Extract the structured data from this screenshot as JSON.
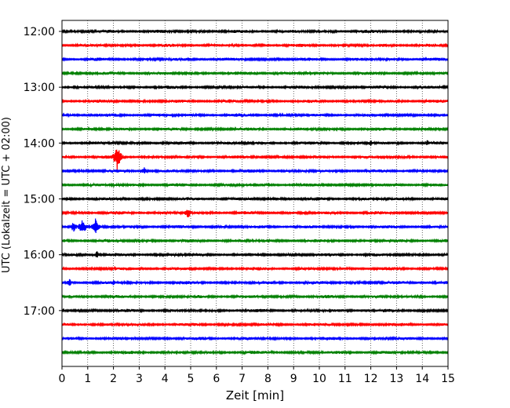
{
  "chart_data": {
    "type": "line",
    "title": "",
    "xlabel": "Zeit  [min]",
    "ylabel": "UTC (Lokalzeit = UTC + 02:00)",
    "xlim": [
      0,
      15
    ],
    "x_ticks": [
      0,
      1,
      2,
      3,
      4,
      5,
      6,
      7,
      8,
      9,
      10,
      11,
      12,
      13,
      14,
      15
    ],
    "x_tick_labels": [
      "0",
      "1",
      "2",
      "3",
      "4",
      "5",
      "6",
      "7",
      "8",
      "9",
      "10",
      "11",
      "12",
      "13",
      "14",
      "15"
    ],
    "y_tick_labels": [
      "12:00",
      "13:00",
      "14:00",
      "15:00",
      "16:00",
      "17:00"
    ],
    "y_tick_positions_hours": [
      12,
      13,
      14,
      15,
      16,
      17
    ],
    "ylim_hours": [
      12,
      18
    ],
    "y_inverted": true,
    "grid": "vertical dotted lines at each minute",
    "trace_interval_minutes": 15,
    "trace_colors": [
      "#000000",
      "#ff0000",
      "#0000ff",
      "#008000"
    ],
    "traces": [
      {
        "start": "12:00",
        "color": "#000000"
      },
      {
        "start": "12:15",
        "color": "#ff0000"
      },
      {
        "start": "12:30",
        "color": "#0000ff"
      },
      {
        "start": "12:45",
        "color": "#008000",
        "events": [
          {
            "minute": 7.5,
            "amplitude": 3
          }
        ]
      },
      {
        "start": "13:00",
        "color": "#000000"
      },
      {
        "start": "13:15",
        "color": "#ff0000",
        "events": [
          {
            "minute": 6.5,
            "amplitude": 3
          }
        ]
      },
      {
        "start": "13:30",
        "color": "#0000ff"
      },
      {
        "start": "13:45",
        "color": "#008000"
      },
      {
        "start": "14:00",
        "color": "#000000",
        "events": [
          {
            "minute": 12.0,
            "amplitude": 4
          },
          {
            "minute": 14.2,
            "amplitude": 4
          }
        ]
      },
      {
        "start": "14:15",
        "color": "#ff0000",
        "events": [
          {
            "minute": 2.15,
            "amplitude": 18
          }
        ]
      },
      {
        "start": "14:30",
        "color": "#0000ff",
        "events": [
          {
            "minute": 3.2,
            "amplitude": 5
          }
        ]
      },
      {
        "start": "14:45",
        "color": "#008000"
      },
      {
        "start": "15:00",
        "color": "#000000"
      },
      {
        "start": "15:15",
        "color": "#ff0000",
        "events": [
          {
            "minute": 4.9,
            "amplitude": 7
          }
        ]
      },
      {
        "start": "15:30",
        "color": "#0000ff",
        "events": [
          {
            "minute": 0.45,
            "amplitude": 7
          },
          {
            "minute": 0.8,
            "amplitude": 12
          },
          {
            "minute": 1.3,
            "amplitude": 11
          }
        ]
      },
      {
        "start": "15:45",
        "color": "#008000"
      },
      {
        "start": "16:00",
        "color": "#000000",
        "events": [
          {
            "minute": 1.35,
            "amplitude": 5
          }
        ]
      },
      {
        "start": "16:15",
        "color": "#ff0000"
      },
      {
        "start": "16:30",
        "color": "#0000ff",
        "events": [
          {
            "minute": 0.3,
            "amplitude": 5
          },
          {
            "minute": 2.0,
            "amplitude": 4
          }
        ]
      },
      {
        "start": "16:45",
        "color": "#008000"
      },
      {
        "start": "17:00",
        "color": "#000000"
      },
      {
        "start": "17:15",
        "color": "#ff0000"
      },
      {
        "start": "17:30",
        "color": "#0000ff"
      },
      {
        "start": "17:45",
        "color": "#008000"
      }
    ]
  }
}
